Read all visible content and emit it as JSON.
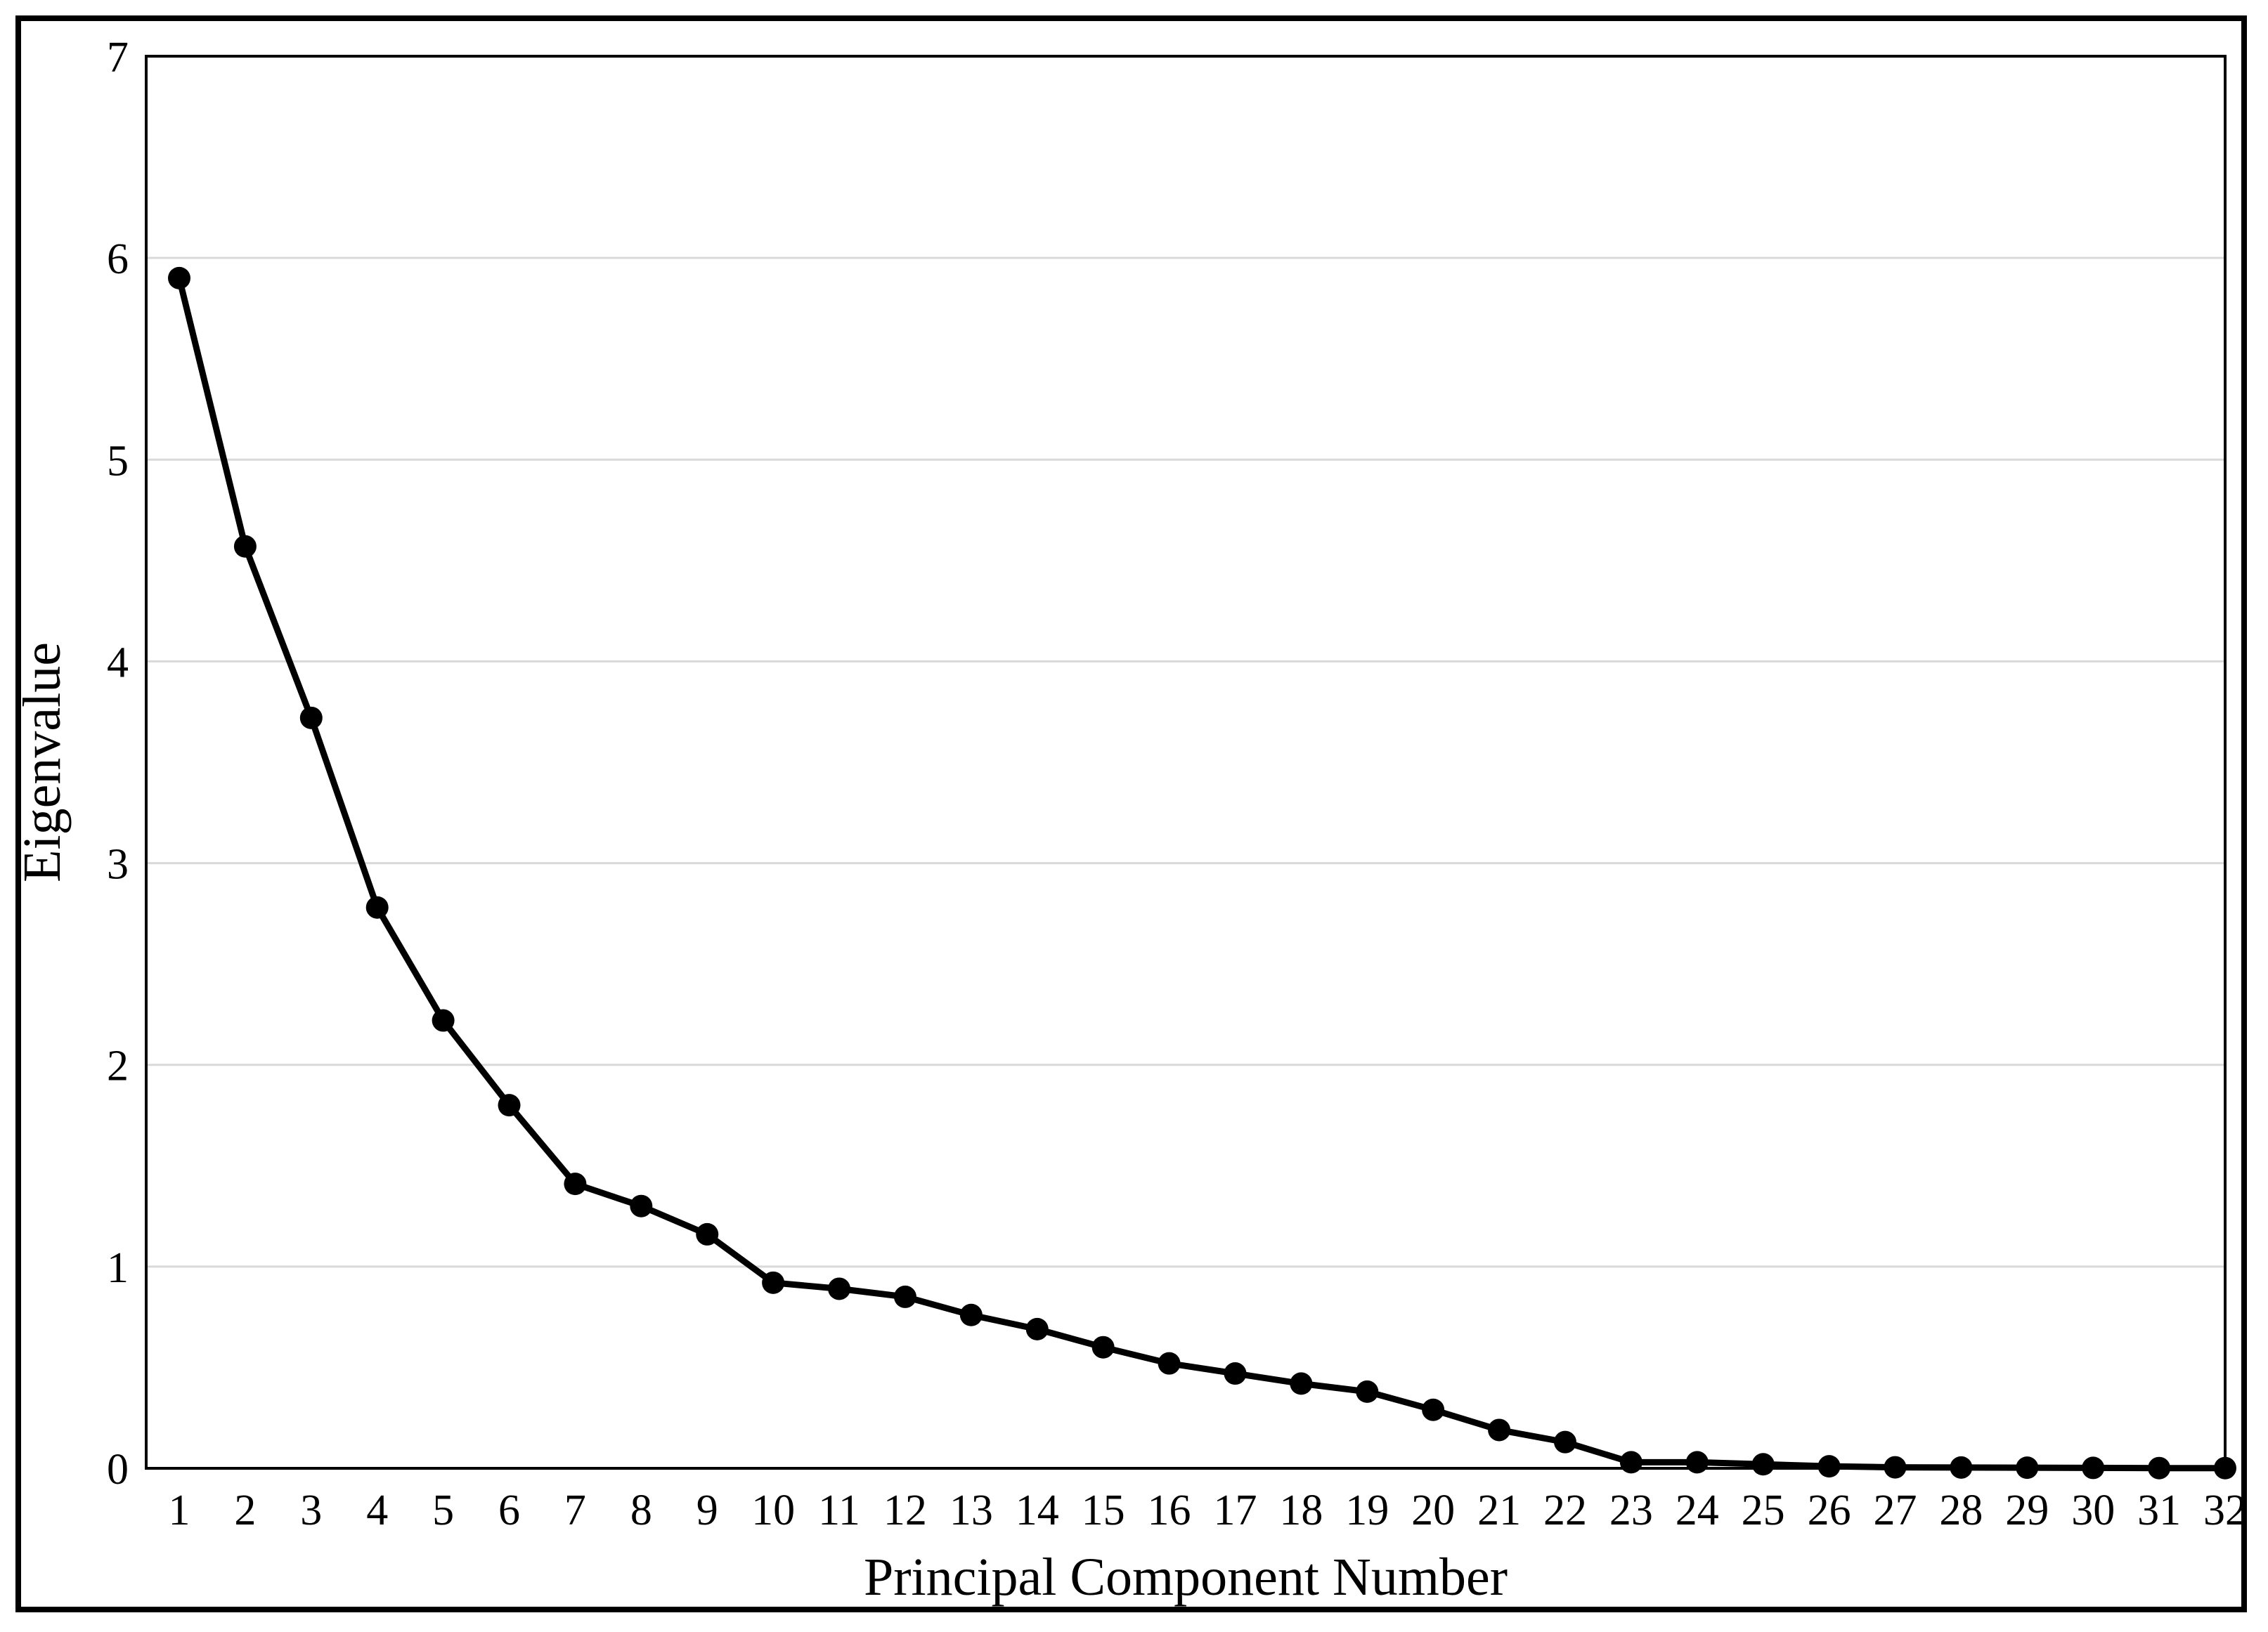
{
  "chart_data": {
    "type": "line",
    "title": "",
    "xlabel": "Principal Component Number",
    "ylabel": "Eigenvalue",
    "x": [
      1,
      2,
      3,
      4,
      5,
      6,
      7,
      8,
      9,
      10,
      11,
      12,
      13,
      14,
      15,
      16,
      17,
      18,
      19,
      20,
      21,
      22,
      23,
      24,
      25,
      26,
      27,
      28,
      29,
      30,
      31,
      32
    ],
    "series": [
      {
        "values": [
          5.9,
          4.57,
          3.72,
          2.78,
          2.22,
          1.8,
          1.41,
          1.3,
          1.16,
          0.92,
          0.89,
          0.85,
          0.76,
          0.69,
          0.6,
          0.52,
          0.47,
          0.42,
          0.38,
          0.29,
          0.19,
          0.13,
          0.03,
          0.03,
          0.02,
          0.01,
          0.005,
          0.004,
          0.003,
          0.002,
          0.001,
          0.001
        ]
      }
    ],
    "xticks": [
      "1",
      "2",
      "3",
      "4",
      "5",
      "6",
      "7",
      "8",
      "9",
      "10",
      "11",
      "12",
      "13",
      "14",
      "15",
      "16",
      "17",
      "18",
      "19",
      "20",
      "21",
      "22",
      "23",
      "24",
      "25",
      "26",
      "27",
      "28",
      "29",
      "30",
      "31",
      "32"
    ],
    "yticks": [
      "0",
      "1",
      "2",
      "3",
      "4",
      "5",
      "6",
      "7"
    ],
    "xlim": [
      1,
      32
    ],
    "ylim": [
      0,
      7
    ],
    "grid": "horizontal",
    "line_color": "#000000",
    "grid_color": "#d9d9d9"
  }
}
